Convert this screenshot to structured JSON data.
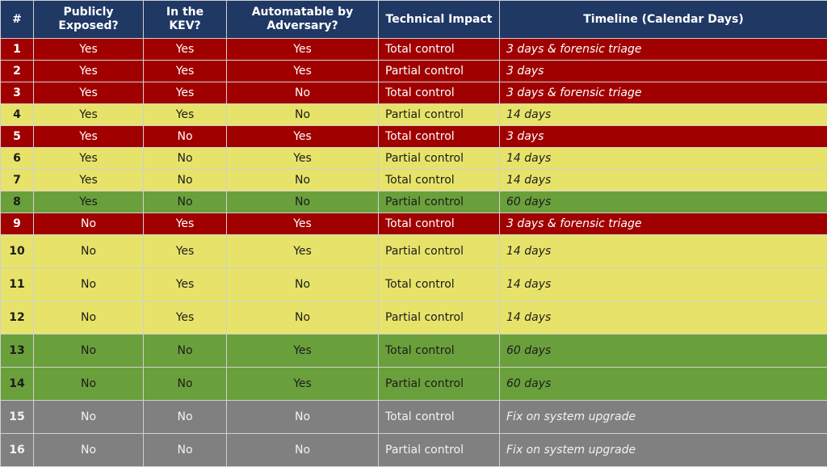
{
  "headers": [
    "#",
    "Publicly Exposed?",
    "In the KEV?",
    "Automatable by Adversary?",
    "Technical Impact",
    "Timeline (Calendar Days)"
  ],
  "colors": {
    "header": "#1f3864",
    "red": "#a00000",
    "yellow": "#e7e36a",
    "green": "#6aa03c",
    "gray": "#808080"
  },
  "rows": [
    {
      "num": "1",
      "exposed": "Yes",
      "kev": "Yes",
      "auto": "Yes",
      "impact": "Total control",
      "timeline": "3 days & forensic triage",
      "color": "red"
    },
    {
      "num": "2",
      "exposed": "Yes",
      "kev": "Yes",
      "auto": "Yes",
      "impact": "Partial control",
      "timeline": "3 days",
      "color": "red"
    },
    {
      "num": "3",
      "exposed": "Yes",
      "kev": "Yes",
      "auto": "No",
      "impact": "Total control",
      "timeline": "3 days & forensic triage",
      "color": "red"
    },
    {
      "num": "4",
      "exposed": "Yes",
      "kev": "Yes",
      "auto": "No",
      "impact": "Partial control",
      "timeline": "14 days",
      "color": "yellow"
    },
    {
      "num": "5",
      "exposed": "Yes",
      "kev": "No",
      "auto": "Yes",
      "impact": "Total control",
      "timeline": "3 days",
      "color": "red"
    },
    {
      "num": "6",
      "exposed": "Yes",
      "kev": "No",
      "auto": "Yes",
      "impact": "Partial control",
      "timeline": "14 days",
      "color": "yellow"
    },
    {
      "num": "7",
      "exposed": "Yes",
      "kev": "No",
      "auto": "No",
      "impact": "Total control",
      "timeline": "14 days",
      "color": "yellow"
    },
    {
      "num": "8",
      "exposed": "Yes",
      "kev": "No",
      "auto": "No",
      "impact": "Partial control",
      "timeline": "60 days",
      "color": "green"
    },
    {
      "num": "9",
      "exposed": "No",
      "kev": "Yes",
      "auto": "Yes",
      "impact": "Total control",
      "timeline": "3 days & forensic triage",
      "color": "red"
    },
    {
      "num": "10",
      "exposed": "No",
      "kev": "Yes",
      "auto": "Yes",
      "impact": "Partial control",
      "timeline": "14 days",
      "color": "yellow"
    },
    {
      "num": "11",
      "exposed": "No",
      "kev": "Yes",
      "auto": "No",
      "impact": "Total control",
      "timeline": "14 days",
      "color": "yellow"
    },
    {
      "num": "12",
      "exposed": "No",
      "kev": "Yes",
      "auto": "No",
      "impact": "Partial control",
      "timeline": "14 days",
      "color": "yellow"
    },
    {
      "num": "13",
      "exposed": "No",
      "kev": "No",
      "auto": "Yes",
      "impact": "Total control",
      "timeline": "60 days",
      "color": "green"
    },
    {
      "num": "14",
      "exposed": "No",
      "kev": "No",
      "auto": "Yes",
      "impact": "Partial control",
      "timeline": "60 days",
      "color": "green"
    },
    {
      "num": "15",
      "exposed": "No",
      "kev": "No",
      "auto": "No",
      "impact": "Total control",
      "timeline": "Fix on system upgrade",
      "color": "gray"
    },
    {
      "num": "16",
      "exposed": "No",
      "kev": "No",
      "auto": "No",
      "impact": "Partial control",
      "timeline": "Fix on system upgrade",
      "color": "gray"
    }
  ]
}
